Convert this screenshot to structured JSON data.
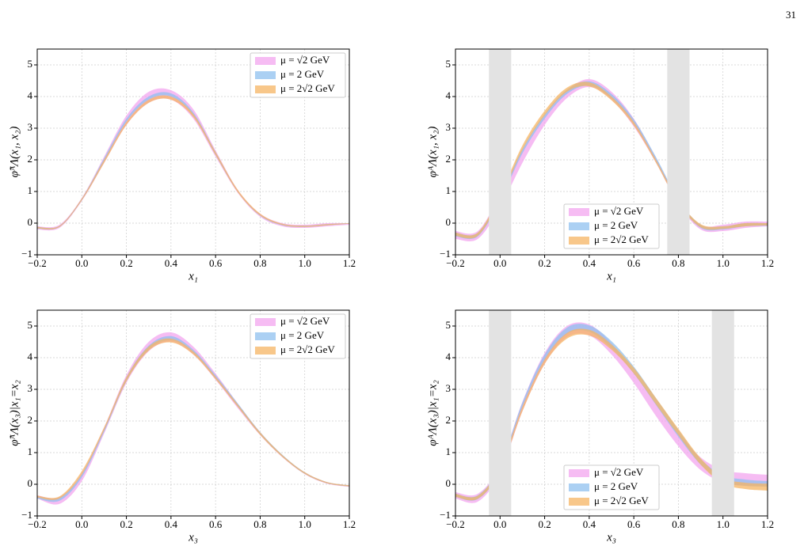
{
  "page_number": "31",
  "chart_data": [
    {
      "type": "band",
      "xlabel": "x₁",
      "ylabel": "φ̃ᴬΛ(x₁, x₂)",
      "legend_loc": "upper right",
      "grid": true,
      "xlim": [
        -0.2,
        1.2
      ],
      "ylim": [
        -1,
        5.5
      ],
      "xticks": [
        {
          "value": -0.2,
          "label": "−0.2"
        },
        {
          "value": 0,
          "label": "0.0"
        },
        0.2,
        0.4,
        0.6,
        0.8,
        {
          "value": 1,
          "label": "1.0"
        },
        1.2
      ],
      "yticks": [
        {
          "value": -1,
          "label": "−1"
        },
        0,
        1,
        2,
        3,
        4,
        5
      ],
      "shaded_regions": [],
      "x": [
        -0.2,
        -0.1,
        0,
        0.1,
        0.2,
        0.3,
        0.4,
        0.5,
        0.6,
        0.7,
        0.8,
        0.9,
        1.0,
        1.1,
        1.2
      ],
      "series": [
        {
          "name": "μ = √2 GeV",
          "color": "#f3a6ef",
          "upper": [
            -0.1,
            -0.05,
            0.8,
            2.1,
            3.4,
            4.15,
            4.2,
            3.6,
            2.3,
            1.05,
            0.3,
            0,
            -0.05,
            0,
            0
          ],
          "lower": [
            -0.2,
            -0.15,
            0.7,
            1.9,
            3.1,
            3.8,
            3.9,
            3.3,
            2.1,
            0.95,
            0.2,
            -0.1,
            -0.15,
            -0.1,
            -0.05
          ]
        },
        {
          "name": "μ = 2 GeV",
          "color": "#8fc0ef",
          "upper": [
            -0.12,
            -0.08,
            0.78,
            2.05,
            3.3,
            4.0,
            4.1,
            3.5,
            2.25,
            1.02,
            0.27,
            -0.03,
            -0.08,
            -0.03,
            0
          ],
          "lower": [
            -0.18,
            -0.12,
            0.72,
            1.95,
            3.2,
            3.9,
            4.0,
            3.4,
            2.15,
            0.98,
            0.23,
            -0.07,
            -0.12,
            -0.07,
            -0.02
          ]
        },
        {
          "name": "μ = 2√2 GeV",
          "color": "#f5b463",
          "upper": [
            -0.12,
            -0.08,
            0.78,
            2.0,
            3.2,
            3.9,
            4.0,
            3.45,
            2.25,
            1.05,
            0.3,
            -0.02,
            -0.08,
            -0.03,
            0
          ],
          "lower": [
            -0.17,
            -0.12,
            0.72,
            1.9,
            3.1,
            3.8,
            3.9,
            3.35,
            2.15,
            0.97,
            0.24,
            -0.06,
            -0.12,
            -0.07,
            -0.02
          ]
        }
      ]
    },
    {
      "type": "band",
      "xlabel": "x₁",
      "ylabel": "φᴬΛ(x₁, x₂)",
      "legend_loc": "lower center",
      "grid": true,
      "xlim": [
        -0.2,
        1.2
      ],
      "ylim": [
        -1,
        5.5
      ],
      "xticks": [
        {
          "value": -0.2,
          "label": "−0.2"
        },
        {
          "value": 0,
          "label": "0.0"
        },
        0.2,
        0.4,
        0.6,
        0.8,
        {
          "value": 1,
          "label": "1.0"
        },
        1.2
      ],
      "yticks": [
        {
          "value": -1,
          "label": "−1"
        },
        0,
        1,
        2,
        3,
        4,
        5
      ],
      "shaded_regions": [
        [
          -0.05,
          0.05
        ],
        [
          0.75,
          0.85
        ]
      ],
      "x": [
        -0.2,
        -0.1,
        0,
        0.1,
        0.2,
        0.3,
        0.4,
        0.5,
        0.6,
        0.7,
        0.8,
        0.9,
        1.0,
        1.1,
        1.2
      ],
      "series": [
        {
          "name": "μ = √2 GeV",
          "color": "#f3a6ef",
          "upper": [
            -0.25,
            -0.25,
            0.9,
            2.3,
            3.4,
            4.2,
            4.55,
            4.15,
            3.3,
            2.05,
            0.75,
            -0.05,
            -0.05,
            0.05,
            0.05
          ],
          "lower": [
            -0.5,
            -0.5,
            0.5,
            1.9,
            3.1,
            3.95,
            4.3,
            3.9,
            3.05,
            1.9,
            0.6,
            -0.2,
            -0.25,
            -0.15,
            -0.1
          ]
        },
        {
          "name": "μ = 2 GeV",
          "color": "#8fc0ef",
          "upper": [
            -0.3,
            -0.3,
            0.85,
            2.35,
            3.45,
            4.22,
            4.48,
            4.08,
            3.28,
            2.08,
            0.75,
            -0.05,
            -0.1,
            0,
            0
          ],
          "lower": [
            -0.42,
            -0.42,
            0.7,
            2.2,
            3.3,
            4.08,
            4.34,
            3.94,
            3.14,
            1.94,
            0.65,
            -0.15,
            -0.2,
            -0.1,
            -0.08
          ]
        },
        {
          "name": "μ = 2√2 GeV",
          "color": "#f5b463",
          "upper": [
            -0.3,
            -0.3,
            0.9,
            2.45,
            3.55,
            4.28,
            4.45,
            4.0,
            3.2,
            2.0,
            0.72,
            -0.03,
            -0.1,
            0,
            0
          ],
          "lower": [
            -0.4,
            -0.4,
            0.75,
            2.3,
            3.4,
            4.15,
            4.32,
            3.88,
            3.08,
            1.9,
            0.62,
            -0.13,
            -0.18,
            -0.1,
            -0.07
          ]
        }
      ]
    },
    {
      "type": "band",
      "xlabel": "x₃",
      "ylabel": "φ̃ᴬΛ(x₃)|x₁=x₂",
      "legend_loc": "upper right",
      "grid": true,
      "xlim": [
        -0.2,
        1.2
      ],
      "ylim": [
        -1,
        5.5
      ],
      "xticks": [
        {
          "value": -0.2,
          "label": "−0.2"
        },
        {
          "value": 0,
          "label": "0.0"
        },
        0.2,
        0.4,
        0.6,
        0.8,
        {
          "value": 1,
          "label": "1.0"
        },
        1.2
      ],
      "yticks": [
        {
          "value": -1,
          "label": "−1"
        },
        0,
        1,
        2,
        3,
        4,
        5
      ],
      "shaded_regions": [],
      "x": [
        -0.2,
        -0.1,
        0,
        0.1,
        0.2,
        0.3,
        0.4,
        0.5,
        0.6,
        0.7,
        0.8,
        0.9,
        1.0,
        1.1,
        1.2
      ],
      "series": [
        {
          "name": "μ = √2 GeV",
          "color": "#f3a6ef",
          "upper": [
            -0.35,
            -0.4,
            0.35,
            1.8,
            3.45,
            4.5,
            4.8,
            4.35,
            3.5,
            2.55,
            1.65,
            0.92,
            0.38,
            0.07,
            -0.03
          ],
          "lower": [
            -0.45,
            -0.62,
            0.1,
            1.6,
            3.2,
            4.2,
            4.5,
            4.1,
            3.3,
            2.4,
            1.55,
            0.85,
            0.32,
            0.02,
            -0.08
          ]
        },
        {
          "name": "μ = 2 GeV",
          "color": "#8fc0ef",
          "upper": [
            -0.38,
            -0.42,
            0.32,
            1.75,
            3.38,
            4.38,
            4.68,
            4.25,
            3.45,
            2.55,
            1.65,
            0.93,
            0.38,
            0.07,
            -0.03
          ],
          "lower": [
            -0.45,
            -0.52,
            0.22,
            1.65,
            3.25,
            4.25,
            4.55,
            4.15,
            3.35,
            2.45,
            1.57,
            0.87,
            0.33,
            0.03,
            -0.07
          ]
        },
        {
          "name": "μ = 2√2 GeV",
          "color": "#f5b463",
          "upper": [
            -0.36,
            -0.38,
            0.42,
            1.8,
            3.38,
            4.35,
            4.6,
            4.2,
            3.4,
            2.52,
            1.64,
            0.92,
            0.38,
            0.07,
            -0.03
          ],
          "lower": [
            -0.42,
            -0.45,
            0.3,
            1.7,
            3.25,
            4.22,
            4.48,
            4.1,
            3.32,
            2.44,
            1.56,
            0.86,
            0.33,
            0.03,
            -0.07
          ]
        }
      ]
    },
    {
      "type": "band",
      "xlabel": "x₃",
      "ylabel": "φᴬΛ(x₃)|x₁=x₂",
      "legend_loc": "lower center",
      "grid": true,
      "xlim": [
        -0.2,
        1.2
      ],
      "ylim": [
        -1,
        5.5
      ],
      "xticks": [
        {
          "value": -0.2,
          "label": "−0.2"
        },
        {
          "value": 0,
          "label": "0.0"
        },
        0.2,
        0.4,
        0.6,
        0.8,
        {
          "value": 1,
          "label": "1.0"
        },
        1.2
      ],
      "yticks": [
        {
          "value": -1,
          "label": "−1"
        },
        0,
        1,
        2,
        3,
        4,
        5
      ],
      "shaded_regions": [
        [
          -0.05,
          0.05
        ],
        [
          0.95,
          1.05
        ]
      ],
      "x": [
        -0.2,
        -0.1,
        0,
        0.1,
        0.2,
        0.3,
        0.4,
        0.5,
        0.6,
        0.7,
        0.8,
        0.9,
        1.0,
        1.1,
        1.2
      ],
      "series": [
        {
          "name": "μ = √2 GeV",
          "color": "#f3a6ef",
          "upper": [
            -0.25,
            -0.3,
            0.6,
            2.6,
            4.15,
            5.0,
            5.05,
            4.45,
            3.55,
            2.55,
            1.6,
            0.85,
            0.45,
            0.35,
            0.3
          ],
          "lower": [
            -0.45,
            -0.55,
            0.35,
            2.3,
            3.8,
            4.65,
            4.7,
            4.1,
            3.2,
            2.15,
            1.2,
            0.45,
            0.05,
            -0.05,
            -0.05
          ]
        },
        {
          "name": "μ = 2 GeV",
          "color": "#8fc0ef",
          "upper": [
            -0.3,
            -0.35,
            0.58,
            2.58,
            4.1,
            4.95,
            5.02,
            4.52,
            3.72,
            2.72,
            1.72,
            0.8,
            0.28,
            0.15,
            0.1
          ],
          "lower": [
            -0.4,
            -0.47,
            0.42,
            2.42,
            3.92,
            4.75,
            4.82,
            4.3,
            3.5,
            2.5,
            1.5,
            0.62,
            0.08,
            -0.05,
            -0.08
          ]
        },
        {
          "name": "μ = 2√2 GeV",
          "color": "#f5b463",
          "upper": [
            -0.3,
            -0.36,
            0.55,
            2.45,
            3.95,
            4.78,
            4.88,
            4.42,
            3.68,
            2.72,
            1.75,
            0.82,
            0.2,
            0.05,
            0.02
          ],
          "lower": [
            -0.4,
            -0.46,
            0.4,
            2.3,
            3.8,
            4.6,
            4.7,
            4.25,
            3.5,
            2.52,
            1.55,
            0.62,
            0.02,
            -0.15,
            -0.2
          ]
        }
      ]
    }
  ]
}
